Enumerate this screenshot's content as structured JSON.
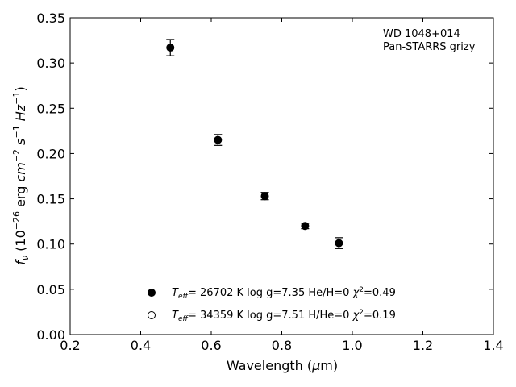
{
  "chart_data": {
    "type": "scatter",
    "xlabel": "Wavelength (μm)",
    "ylabel": "f_ν (10^−26 erg cm^−2 s^−1 Hz^−1)",
    "xlim": [
      0.2,
      1.4
    ],
    "ylim": [
      0.0,
      0.35
    ],
    "xticks": [
      "0.2",
      "0.4",
      "0.6",
      "0.8",
      "1.0",
      "1.2",
      "1.4"
    ],
    "yticks": [
      "0.00",
      "0.05",
      "0.10",
      "0.15",
      "0.20",
      "0.25",
      "0.30",
      "0.35"
    ],
    "ticks_direction": "in",
    "grid": false,
    "annotation": [
      "WD 1048+014",
      "Pan-STARRS grizy"
    ],
    "annotation_position": "top-right",
    "legend_position": "lower-center",
    "series": [
      {
        "name": "T_eff= 26702 K  log g=7.35  He/H=0  χ²=0.49",
        "marker": "filled-circle",
        "color": "#000000",
        "x": [
          0.484,
          0.619,
          0.752,
          0.866,
          0.962
        ],
        "y": [
          0.317,
          0.215,
          0.153,
          0.12,
          0.101
        ],
        "yerr": [
          0.009,
          0.006,
          0.004,
          0.003,
          0.006
        ]
      },
      {
        "name": "T_eff= 34359 K  log g=7.51  H/He=0  χ²=0.19",
        "marker": "open-circle",
        "color": "#000000",
        "x": [],
        "y": []
      }
    ]
  }
}
